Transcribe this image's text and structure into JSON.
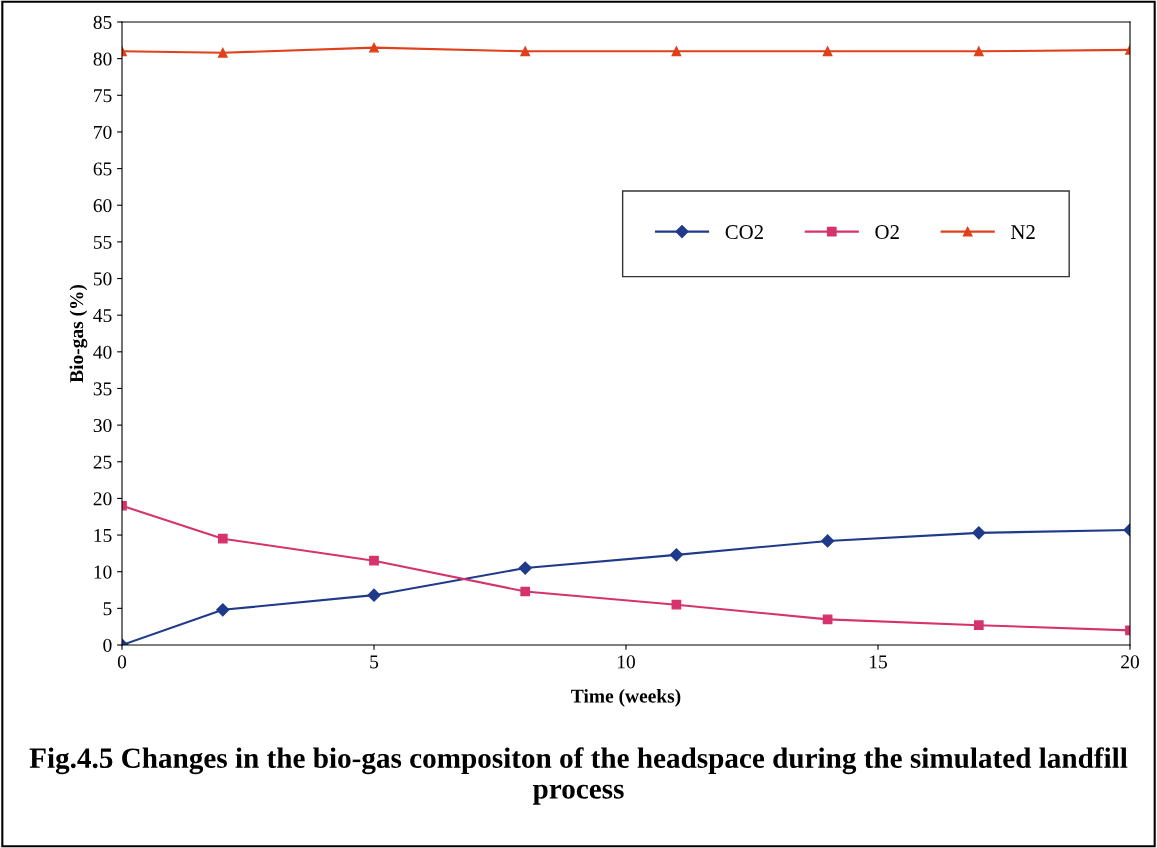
{
  "chart_data": {
    "type": "line",
    "title": "Fig.4.5 Changes in the bio-gas compositon of the headspace during the simulated landfill process",
    "xlabel": "Time (weeks)",
    "ylabel": "Bio-gas (%)",
    "x": [
      0,
      2,
      5,
      8,
      11,
      14,
      17,
      20
    ],
    "series": [
      {
        "name": "CO2",
        "color": "#1f3a8a",
        "marker": "diamond",
        "values": [
          0,
          4.8,
          6.8,
          10.5,
          12.3,
          14.2,
          15.3,
          15.7
        ]
      },
      {
        "name": "O2",
        "color": "#d6336c",
        "marker": "square",
        "values": [
          19,
          14.5,
          11.5,
          7.3,
          5.5,
          3.5,
          2.7,
          2.0
        ]
      },
      {
        "name": "N2",
        "color": "#e0401a",
        "marker": "triangle",
        "values": [
          81,
          80.8,
          81.5,
          81,
          81,
          81,
          81,
          81.2
        ]
      }
    ],
    "xlim": [
      0,
      20
    ],
    "xticks": [
      0,
      5,
      10,
      15,
      20
    ],
    "ylim": [
      0,
      85
    ],
    "yticks": [
      0,
      5,
      10,
      15,
      20,
      25,
      30,
      35,
      40,
      45,
      50,
      55,
      60,
      65,
      70,
      75,
      80,
      85
    ],
    "grid": false,
    "legend": "right",
    "line_style": "solid"
  }
}
